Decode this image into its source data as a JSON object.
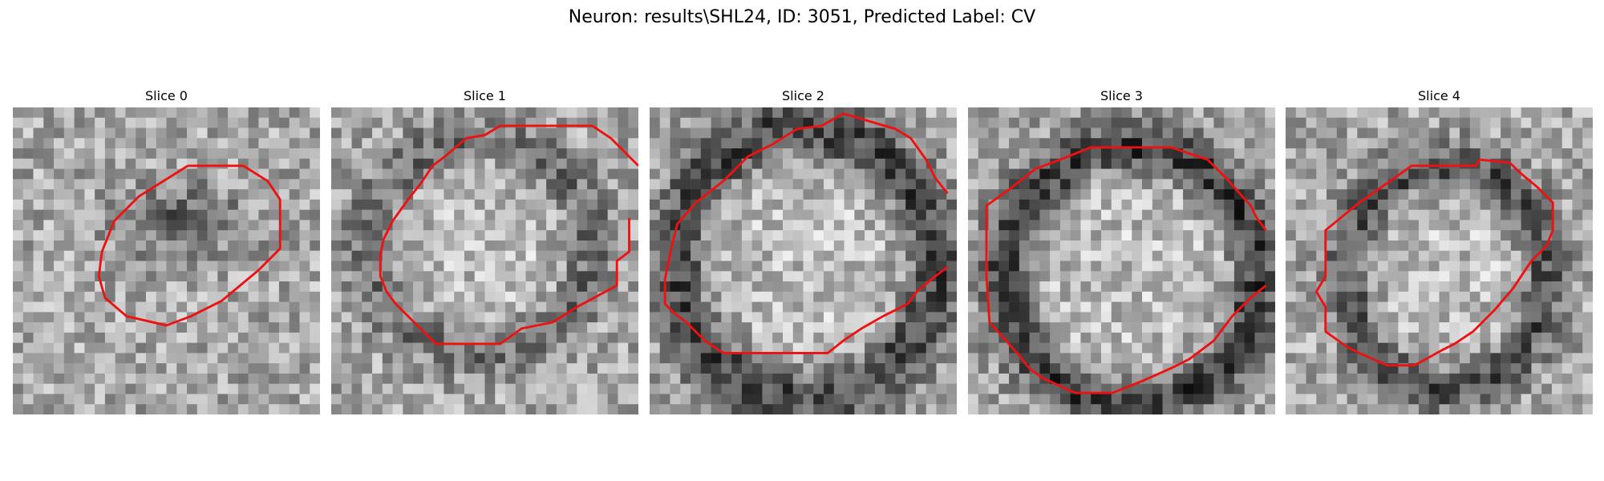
{
  "title": "Neuron: results\\SHL24, ID: 3051, Predicted Label: CV",
  "overlay_color": "#ee1111",
  "panels": [
    {
      "label": "Slice 0",
      "seed": 11,
      "darkness": 0.7,
      "blob": [
        0.55,
        0.37,
        0.22,
        0.13
      ],
      "ring": null,
      "contour": [
        [
          0.57,
          0.19
        ],
        [
          0.75,
          0.19
        ],
        [
          0.83,
          0.24
        ],
        [
          0.87,
          0.3
        ],
        [
          0.87,
          0.46
        ],
        [
          0.8,
          0.53
        ],
        [
          0.74,
          0.58
        ],
        [
          0.68,
          0.63
        ],
        [
          0.58,
          0.68
        ],
        [
          0.5,
          0.71
        ],
        [
          0.37,
          0.68
        ],
        [
          0.3,
          0.62
        ],
        [
          0.28,
          0.55
        ],
        [
          0.29,
          0.47
        ],
        [
          0.33,
          0.37
        ],
        [
          0.41,
          0.29
        ],
        [
          0.57,
          0.19
        ]
      ]
    },
    {
      "label": "Slice 1",
      "seed": 23,
      "darkness": 0.6,
      "blob": null,
      "ring": [
        0.48,
        0.45,
        0.36,
        0.34,
        0.08
      ],
      "contour": [
        [
          1.0,
          0.19
        ],
        [
          0.91,
          0.1
        ],
        [
          0.85,
          0.06
        ],
        [
          0.55,
          0.06
        ],
        [
          0.5,
          0.09
        ],
        [
          0.44,
          0.1
        ],
        [
          0.37,
          0.16
        ],
        [
          0.33,
          0.19
        ],
        [
          0.29,
          0.25
        ],
        [
          0.25,
          0.3
        ],
        [
          0.2,
          0.37
        ],
        [
          0.17,
          0.43
        ],
        [
          0.16,
          0.48
        ],
        [
          0.16,
          0.55
        ],
        [
          0.18,
          0.6
        ],
        [
          0.21,
          0.64
        ],
        [
          0.26,
          0.69
        ],
        [
          0.34,
          0.77
        ],
        [
          0.55,
          0.77
        ],
        [
          0.62,
          0.72
        ],
        [
          0.72,
          0.7
        ],
        [
          0.8,
          0.65
        ],
        [
          0.93,
          0.58
        ],
        [
          0.93,
          0.5
        ],
        [
          0.97,
          0.47
        ],
        [
          0.97,
          0.36
        ]
      ]
    },
    {
      "label": "Slice 2",
      "seed": 37,
      "darkness": 1.0,
      "blob": null,
      "ring": [
        0.51,
        0.51,
        0.42,
        0.44,
        0.08
      ],
      "contour": [
        [
          0.97,
          0.28
        ],
        [
          0.93,
          0.23
        ],
        [
          0.9,
          0.17
        ],
        [
          0.85,
          0.1
        ],
        [
          0.8,
          0.07
        ],
        [
          0.63,
          0.02
        ],
        [
          0.56,
          0.06
        ],
        [
          0.48,
          0.07
        ],
        [
          0.4,
          0.12
        ],
        [
          0.32,
          0.16
        ],
        [
          0.24,
          0.24
        ],
        [
          0.15,
          0.31
        ],
        [
          0.09,
          0.38
        ],
        [
          0.07,
          0.46
        ],
        [
          0.05,
          0.56
        ],
        [
          0.05,
          0.64
        ],
        [
          0.08,
          0.67
        ],
        [
          0.12,
          0.7
        ],
        [
          0.18,
          0.76
        ],
        [
          0.24,
          0.8
        ],
        [
          0.58,
          0.8
        ],
        [
          0.63,
          0.76
        ],
        [
          0.69,
          0.72
        ],
        [
          0.76,
          0.68
        ],
        [
          0.84,
          0.64
        ],
        [
          0.87,
          0.6
        ],
        [
          0.93,
          0.55
        ],
        [
          0.97,
          0.52
        ]
      ]
    },
    {
      "label": "Slice 3",
      "seed": 53,
      "darkness": 1.1,
      "blob": null,
      "ring": [
        0.53,
        0.55,
        0.41,
        0.42,
        0.07
      ],
      "contour": [
        [
          0.97,
          0.4
        ],
        [
          0.94,
          0.36
        ],
        [
          0.92,
          0.32
        ],
        [
          0.84,
          0.23
        ],
        [
          0.78,
          0.17
        ],
        [
          0.66,
          0.13
        ],
        [
          0.4,
          0.13
        ],
        [
          0.3,
          0.17
        ],
        [
          0.22,
          0.2
        ],
        [
          0.13,
          0.27
        ],
        [
          0.06,
          0.32
        ],
        [
          0.06,
          0.55
        ],
        [
          0.07,
          0.7
        ],
        [
          0.16,
          0.8
        ],
        [
          0.2,
          0.85
        ],
        [
          0.24,
          0.88
        ],
        [
          0.35,
          0.93
        ],
        [
          0.47,
          0.93
        ],
        [
          0.57,
          0.89
        ],
        [
          0.66,
          0.85
        ],
        [
          0.72,
          0.82
        ],
        [
          0.8,
          0.76
        ],
        [
          0.86,
          0.68
        ],
        [
          0.92,
          0.62
        ],
        [
          0.97,
          0.58
        ]
      ]
    },
    {
      "label": "Slice 4",
      "seed": 71,
      "darkness": 0.9,
      "blob": null,
      "ring": [
        0.52,
        0.55,
        0.32,
        0.36,
        0.08
      ],
      "contour": [
        [
          0.63,
          0.17
        ],
        [
          0.62,
          0.19
        ],
        [
          0.53,
          0.19
        ],
        [
          0.41,
          0.19
        ],
        [
          0.34,
          0.24
        ],
        [
          0.24,
          0.31
        ],
        [
          0.13,
          0.4
        ],
        [
          0.13,
          0.55
        ],
        [
          0.1,
          0.6
        ],
        [
          0.13,
          0.65
        ],
        [
          0.13,
          0.73
        ],
        [
          0.2,
          0.78
        ],
        [
          0.24,
          0.8
        ],
        [
          0.33,
          0.84
        ],
        [
          0.42,
          0.84
        ],
        [
          0.51,
          0.79
        ],
        [
          0.55,
          0.77
        ],
        [
          0.61,
          0.73
        ],
        [
          0.68,
          0.66
        ],
        [
          0.74,
          0.59
        ],
        [
          0.8,
          0.5
        ],
        [
          0.85,
          0.45
        ],
        [
          0.87,
          0.4
        ],
        [
          0.87,
          0.31
        ],
        [
          0.82,
          0.26
        ],
        [
          0.76,
          0.21
        ],
        [
          0.73,
          0.18
        ],
        [
          0.63,
          0.17
        ]
      ]
    }
  ]
}
